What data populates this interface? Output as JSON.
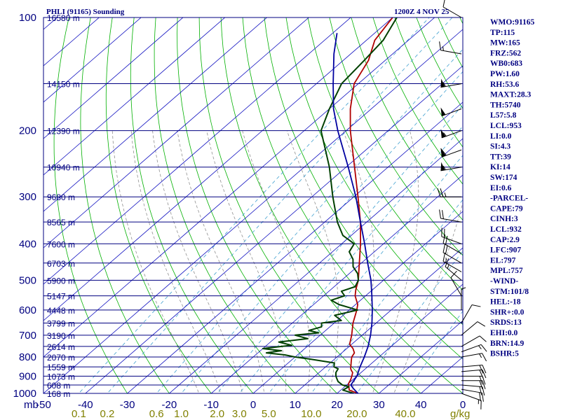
{
  "header": {
    "station": "PHLI (91165) Sounding",
    "datetime": "1200Z  4 NOV 25"
  },
  "chart_data": {
    "type": "line",
    "chart_kind": "skew-T log-P sounding",
    "yscale": "log",
    "ylim": [
      1000,
      100
    ],
    "xlim": [
      -50,
      50
    ],
    "y_corner_label": "mb",
    "mixing_ratio_unit": "g/kg",
    "pressure_levels": [
      100,
      200,
      300,
      400,
      500,
      600,
      700,
      800,
      900,
      1000
    ],
    "temperature_ticks": [
      "-50",
      "-40",
      "-30",
      "-20",
      "-10",
      "0",
      "10",
      "20",
      "30",
      "40",
      "0"
    ],
    "mixing_ratio_labels": [
      {
        "value": 0.1,
        "text": "0.1"
      },
      {
        "value": 0.2,
        "text": "0.2"
      },
      {
        "value": 0.6,
        "text": "0.6"
      },
      {
        "value": 1.0,
        "text": "1.0"
      },
      {
        "value": 2.0,
        "text": "2.0"
      },
      {
        "value": 3.0,
        "text": "3.0"
      },
      {
        "value": 5.0,
        "text": "5.0"
      },
      {
        "value": 10.0,
        "text": "10.0"
      },
      {
        "value": 20.0,
        "text": "20.0"
      },
      {
        "value": 40.0,
        "text": "40.0"
      }
    ],
    "height_labels": [
      {
        "p": 100,
        "text": "16580 m"
      },
      {
        "p": 150,
        "text": "14150 m"
      },
      {
        "p": 200,
        "text": "12390 m"
      },
      {
        "p": 250,
        "text": "10940 m"
      },
      {
        "p": 300,
        "text": "9680 m"
      },
      {
        "p": 350,
        "text": "8565 m"
      },
      {
        "p": 400,
        "text": "7600 m"
      },
      {
        "p": 450,
        "text": "6703 m"
      },
      {
        "p": 500,
        "text": "5900 m"
      },
      {
        "p": 550,
        "text": "5147 m"
      },
      {
        "p": 600,
        "text": "4448 m"
      },
      {
        "p": 650,
        "text": "3799 m"
      },
      {
        "p": 700,
        "text": "3190 m"
      },
      {
        "p": 750,
        "text": "2614 m"
      },
      {
        "p": 800,
        "text": "2070 m"
      },
      {
        "p": 850,
        "text": "1559 m"
      },
      {
        "p": 900,
        "text": "1073 m"
      },
      {
        "p": 950,
        "text": "608 m"
      },
      {
        "p": 1000,
        "text": "168 m"
      }
    ],
    "series": [
      {
        "role": "temperature",
        "color": "#b00000",
        "points": [
          [
            1000,
            25
          ],
          [
            980,
            22
          ],
          [
            960,
            21
          ],
          [
            950,
            20.5
          ],
          [
            940,
            20
          ],
          [
            920,
            19.5
          ],
          [
            900,
            18.8
          ],
          [
            880,
            18
          ],
          [
            870,
            17.2
          ],
          [
            860,
            16.5
          ],
          [
            850,
            16
          ],
          [
            820,
            14.5
          ],
          [
            800,
            13.5
          ],
          [
            780,
            13
          ],
          [
            760,
            11.5
          ],
          [
            740,
            9.5
          ],
          [
            700,
            7.5
          ],
          [
            650,
            4.5
          ],
          [
            600,
            1.8
          ],
          [
            580,
            0.5
          ],
          [
            550,
            -2.5
          ],
          [
            530,
            -4
          ],
          [
            500,
            -6
          ],
          [
            450,
            -10.5
          ],
          [
            400,
            -15.5
          ],
          [
            350,
            -21.5
          ],
          [
            300,
            -29
          ],
          [
            250,
            -38
          ],
          [
            200,
            -49
          ],
          [
            175,
            -55
          ],
          [
            150,
            -61
          ],
          [
            130,
            -64
          ],
          [
            115,
            -68
          ],
          [
            100,
            -70
          ]
        ]
      },
      {
        "role": "dewpoint",
        "color": "#004000",
        "points": [
          [
            1000,
            24
          ],
          [
            980,
            20.5
          ],
          [
            960,
            21
          ],
          [
            950,
            19
          ],
          [
            930,
            17
          ],
          [
            915,
            16
          ],
          [
            900,
            15
          ],
          [
            880,
            14
          ],
          [
            860,
            13.5
          ],
          [
            850,
            12
          ],
          [
            830,
            11
          ],
          [
            810,
            4
          ],
          [
            800,
            0
          ],
          [
            790,
            -3
          ],
          [
            780,
            -8
          ],
          [
            770,
            -5
          ],
          [
            760,
            -10
          ],
          [
            745,
            -4
          ],
          [
            730,
            -8
          ],
          [
            715,
            -2
          ],
          [
            700,
            -6
          ],
          [
            690,
            -1
          ],
          [
            680,
            -4
          ],
          [
            665,
            -2
          ],
          [
            650,
            -3
          ],
          [
            640,
            1
          ],
          [
            620,
            -2
          ],
          [
            600,
            2
          ],
          [
            580,
            -4
          ],
          [
            565,
            -7
          ],
          [
            550,
            -5
          ],
          [
            535,
            -7
          ],
          [
            520,
            -5
          ],
          [
            500,
            -6
          ],
          [
            480,
            -8
          ],
          [
            460,
            -11
          ],
          [
            440,
            -13
          ],
          [
            420,
            -16
          ],
          [
            400,
            -17
          ],
          [
            380,
            -22
          ],
          [
            350,
            -27
          ],
          [
            300,
            -35
          ],
          [
            250,
            -44
          ],
          [
            200,
            -56
          ],
          [
            175,
            -60
          ],
          [
            150,
            -64
          ],
          [
            130,
            -65
          ],
          [
            115,
            -66
          ],
          [
            100,
            -69
          ]
        ]
      },
      {
        "role": "parcel",
        "color": "#0000a0",
        "points": [
          [
            1000,
            25
          ],
          [
            970,
            22.5
          ],
          [
            950,
            21
          ],
          [
            900,
            20
          ],
          [
            850,
            18.2
          ],
          [
            800,
            16.5
          ],
          [
            750,
            14.5
          ],
          [
            700,
            12
          ],
          [
            650,
            9
          ],
          [
            600,
            5.5
          ],
          [
            550,
            1.5
          ],
          [
            500,
            -3
          ],
          [
            450,
            -8.5
          ],
          [
            400,
            -14.5
          ],
          [
            350,
            -21.5
          ],
          [
            300,
            -29.5
          ],
          [
            250,
            -39.5
          ],
          [
            200,
            -52
          ],
          [
            175,
            -59
          ],
          [
            150,
            -66
          ],
          [
            125,
            -74
          ],
          [
            110,
            -79
          ]
        ]
      }
    ],
    "wind_barbs": [
      {
        "p": 1000,
        "dir": 110,
        "spd": 15
      },
      {
        "p": 975,
        "dir": 100,
        "spd": 20
      },
      {
        "p": 950,
        "dir": 95,
        "spd": 20
      },
      {
        "p": 925,
        "dir": 90,
        "spd": 20
      },
      {
        "p": 900,
        "dir": 90,
        "spd": 20
      },
      {
        "p": 875,
        "dir": 85,
        "spd": 20
      },
      {
        "p": 850,
        "dir": 85,
        "spd": 20
      },
      {
        "p": 800,
        "dir": 80,
        "spd": 15
      },
      {
        "p": 775,
        "dir": 70,
        "spd": 15
      },
      {
        "p": 750,
        "dir": 60,
        "spd": 10
      },
      {
        "p": 700,
        "dir": 50,
        "spd": 10
      },
      {
        "p": 650,
        "dir": 30,
        "spd": 10
      },
      {
        "p": 600,
        "dir": 360,
        "spd": 5
      },
      {
        "p": 550,
        "dir": 330,
        "spd": 10
      },
      {
        "p": 500,
        "dir": 310,
        "spd": 15
      },
      {
        "p": 475,
        "dir": 300,
        "spd": 15
      },
      {
        "p": 450,
        "dir": 300,
        "spd": 20
      },
      {
        "p": 425,
        "dir": 300,
        "spd": 20
      },
      {
        "p": 400,
        "dir": 290,
        "spd": 20
      },
      {
        "p": 350,
        "dir": 280,
        "spd": 20
      },
      {
        "p": 300,
        "dir": 270,
        "spd": 25
      },
      {
        "p": 250,
        "dir": 260,
        "spd": 55
      },
      {
        "p": 225,
        "dir": 250,
        "spd": 60
      },
      {
        "p": 200,
        "dir": 250,
        "spd": 55
      },
      {
        "p": 175,
        "dir": 250,
        "spd": 50
      },
      {
        "p": 150,
        "dir": 260,
        "spd": 55
      },
      {
        "p": 125,
        "dir": 280,
        "spd": 15
      },
      {
        "p": 100,
        "dir": 300,
        "spd": 10
      }
    ]
  },
  "indices": [
    "WMO:91165",
    "TP:115",
    "MW:165",
    "FRZ:562",
    "WB0:683",
    "PW:1.60",
    "RH:53.6",
    "MAXT:28.3",
    "TH:5740",
    "L57:5.8",
    "LCL:953",
    "LI:0.0",
    "SI:4.3",
    "TT:39",
    "KI:14",
    "SW:174",
    "EI:0.6",
    "-PARCEL-",
    "CAPE:79",
    "CINH:3",
    "LCL:932",
    "CAP:2.9",
    "LFC:907",
    "EL:797",
    "MPL:757",
    "-WIND-",
    "STM:101/8",
    "HEL:-18",
    "SHR+:0.0",
    "SRDS:13",
    "EHI:0.0",
    "BRN:14.9",
    "BSHR:5"
  ]
}
